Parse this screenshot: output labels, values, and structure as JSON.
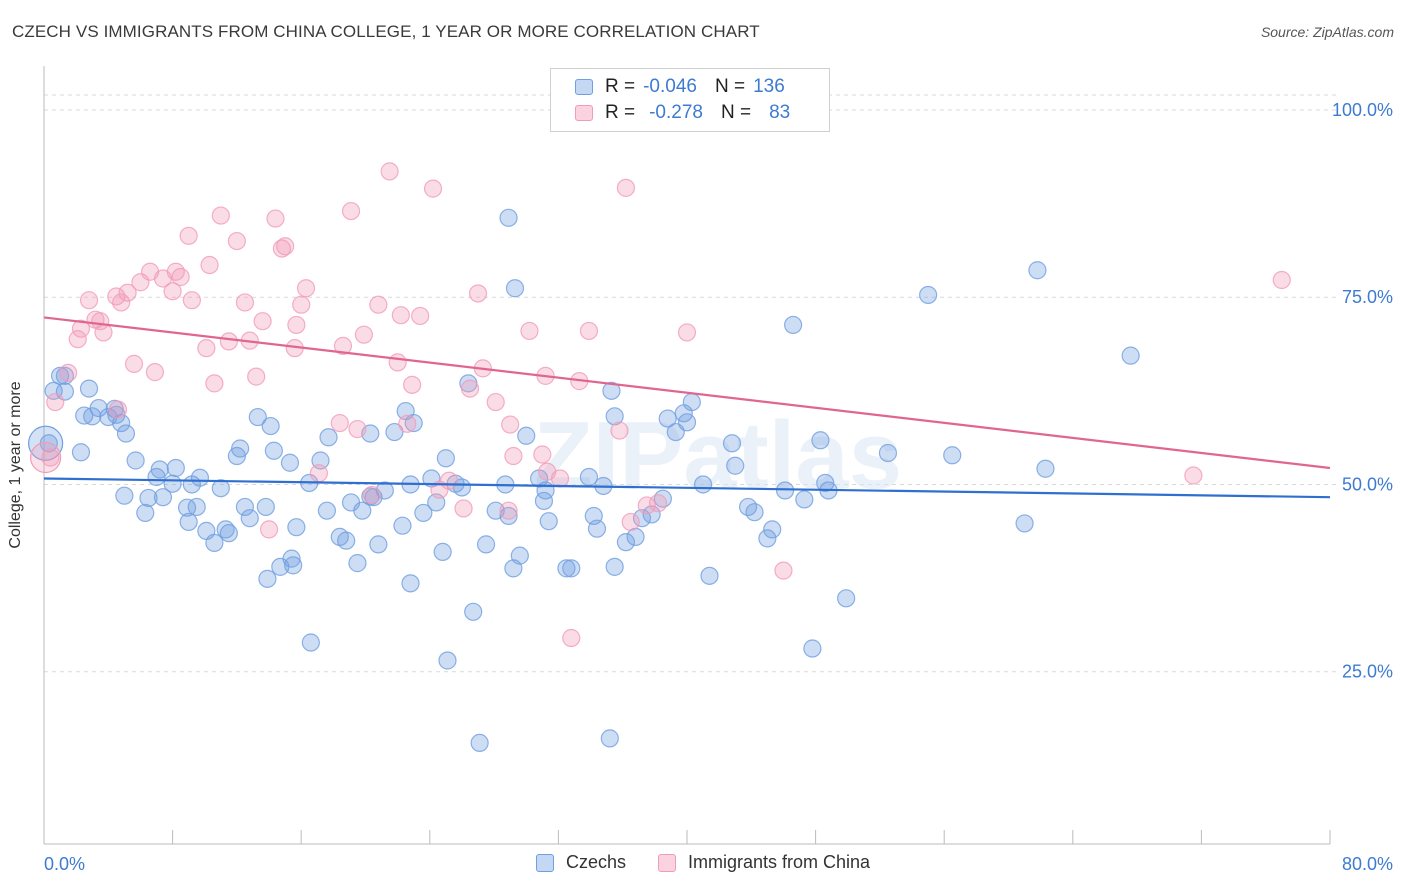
{
  "title": "CZECH VS IMMIGRANTS FROM CHINA COLLEGE, 1 YEAR OR MORE CORRELATION CHART",
  "source": "Source: ZipAtlas.com",
  "watermark": "ZIPatlas",
  "legend": {
    "rows": [
      {
        "r_label": "R =",
        "r_value": "-0.046",
        "n_label": "N =",
        "n_value": "136"
      },
      {
        "r_label": "R =",
        "r_value": "-0.278",
        "n_label": "N =",
        "n_value": "83"
      }
    ]
  },
  "bottom_legend": [
    "Czechs",
    "Immigrants from China"
  ],
  "chart_data": {
    "type": "scatter",
    "title": "CZECH VS IMMIGRANTS FROM CHINA COLLEGE, 1 YEAR OR MORE CORRELATION CHART",
    "xlabel": "",
    "ylabel": "College, 1 year or more",
    "xlim": [
      0,
      80
    ],
    "ylim": [
      2,
      104
    ],
    "x_tick_labels": [
      "0.0%",
      "80.0%"
    ],
    "y_ticks": [
      25,
      50,
      75,
      100
    ],
    "y_tick_labels": [
      "25.0%",
      "50.0%",
      "75.0%",
      "100.0%"
    ],
    "grid": "horizontal dashed",
    "legend_position": "top-center",
    "colors": {
      "czechs": "#6f9fe0",
      "china": "#f29bb8",
      "czechs_line": "#2f6fcf",
      "china_line": "#e0668f",
      "tick_label": "#3d7bd0"
    },
    "series": [
      {
        "name": "Czechs",
        "r": -0.046,
        "n": 136,
        "trend": {
          "x": [
            0,
            80
          ],
          "y": [
            50.8,
            48.3
          ]
        },
        "points": [
          [
            0.3,
            55.5
          ],
          [
            0.6,
            62.5
          ],
          [
            1.0,
            64.5
          ],
          [
            1.3,
            64.5
          ],
          [
            2.8,
            62.8
          ],
          [
            2.5,
            59.2
          ],
          [
            3.4,
            60.2
          ],
          [
            4.5,
            59.3
          ],
          [
            4.8,
            58.2
          ],
          [
            5.1,
            56.8
          ],
          [
            4.4,
            60.1
          ],
          [
            4.0,
            59.0
          ],
          [
            2.3,
            54.3
          ],
          [
            5.7,
            53.2
          ],
          [
            7.2,
            52.0
          ],
          [
            8.2,
            52.2
          ],
          [
            7.0,
            51.0
          ],
          [
            8.0,
            50.1
          ],
          [
            9.7,
            50.9
          ],
          [
            9.2,
            50.0
          ],
          [
            6.5,
            48.2
          ],
          [
            7.4,
            48.3
          ],
          [
            6.3,
            46.2
          ],
          [
            8.9,
            46.9
          ],
          [
            9.0,
            45.0
          ],
          [
            10.1,
            43.8
          ],
          [
            10.6,
            42.2
          ],
          [
            11.3,
            44.0
          ],
          [
            11.5,
            43.5
          ],
          [
            12.8,
            45.5
          ],
          [
            12.5,
            47.0
          ],
          [
            13.8,
            47.0
          ],
          [
            12.0,
            53.8
          ],
          [
            12.2,
            54.8
          ],
          [
            13.3,
            59.0
          ],
          [
            14.1,
            57.8
          ],
          [
            14.3,
            54.5
          ],
          [
            15.3,
            52.9
          ],
          [
            15.7,
            44.3
          ],
          [
            15.4,
            40.1
          ],
          [
            14.7,
            39.0
          ],
          [
            15.5,
            39.2
          ],
          [
            13.9,
            37.4
          ],
          [
            16.6,
            28.9
          ],
          [
            17.2,
            53.2
          ],
          [
            17.6,
            46.5
          ],
          [
            17.7,
            56.3
          ],
          [
            18.4,
            43.0
          ],
          [
            18.8,
            42.5
          ],
          [
            19.1,
            47.6
          ],
          [
            19.5,
            39.5
          ],
          [
            20.3,
            48.4
          ],
          [
            20.3,
            56.8
          ],
          [
            20.8,
            42.0
          ],
          [
            20.5,
            48.3
          ],
          [
            21.2,
            49.2
          ],
          [
            21.8,
            57.0
          ],
          [
            22.3,
            44.5
          ],
          [
            22.8,
            50.0
          ],
          [
            22.5,
            59.8
          ],
          [
            23.0,
            58.2
          ],
          [
            22.8,
            36.8
          ],
          [
            23.6,
            46.2
          ],
          [
            24.1,
            50.8
          ],
          [
            24.4,
            47.6
          ],
          [
            24.8,
            41.0
          ],
          [
            25.0,
            53.5
          ],
          [
            25.6,
            50.1
          ],
          [
            26.0,
            49.6
          ],
          [
            25.1,
            26.5
          ],
          [
            26.7,
            33.0
          ],
          [
            26.4,
            63.5
          ],
          [
            27.1,
            15.5
          ],
          [
            28.1,
            46.5
          ],
          [
            28.7,
            50.0
          ],
          [
            28.9,
            45.8
          ],
          [
            29.2,
            38.8
          ],
          [
            29.3,
            76.2
          ],
          [
            29.6,
            40.5
          ],
          [
            30.0,
            56.5
          ],
          [
            31.1,
            47.8
          ],
          [
            31.2,
            49.2
          ],
          [
            31.4,
            45.1
          ],
          [
            32.5,
            38.8
          ],
          [
            32.8,
            38.8
          ],
          [
            33.9,
            51.0
          ],
          [
            34.2,
            45.8
          ],
          [
            34.4,
            44.1
          ],
          [
            34.8,
            49.8
          ],
          [
            35.2,
            16.1
          ],
          [
            35.3,
            62.5
          ],
          [
            35.5,
            39.0
          ],
          [
            35.5,
            59.1
          ],
          [
            36.2,
            42.3
          ],
          [
            37.2,
            45.5
          ],
          [
            37.8,
            46.0
          ],
          [
            38.8,
            58.8
          ],
          [
            39.3,
            57.0
          ],
          [
            39.8,
            59.5
          ],
          [
            40.0,
            58.3
          ],
          [
            40.3,
            61.0
          ],
          [
            41.0,
            50.0
          ],
          [
            41.4,
            37.8
          ],
          [
            42.8,
            55.5
          ],
          [
            43.8,
            47.0
          ],
          [
            44.2,
            46.3
          ],
          [
            45.0,
            42.8
          ],
          [
            45.3,
            44.0
          ],
          [
            46.1,
            49.2
          ],
          [
            46.6,
            71.3
          ],
          [
            47.3,
            48.0
          ],
          [
            47.8,
            28.1
          ],
          [
            48.3,
            55.9
          ],
          [
            48.6,
            50.2
          ],
          [
            48.8,
            49.2
          ],
          [
            49.9,
            34.8
          ],
          [
            52.5,
            54.2
          ],
          [
            55.0,
            75.3
          ],
          [
            56.5,
            53.9
          ],
          [
            61.0,
            44.8
          ],
          [
            61.8,
            78.6
          ],
          [
            62.3,
            52.1
          ],
          [
            67.6,
            67.2
          ],
          [
            1.3,
            62.4
          ],
          [
            3.0,
            59.1
          ],
          [
            5.0,
            48.5
          ],
          [
            9.5,
            47.0
          ],
          [
            11.0,
            49.5
          ],
          [
            16.5,
            50.2
          ],
          [
            19.8,
            46.5
          ],
          [
            27.5,
            42.0
          ],
          [
            30.8,
            50.8
          ],
          [
            36.8,
            43.0
          ],
          [
            38.5,
            48.1
          ],
          [
            43.0,
            52.5
          ],
          [
            28.9,
            85.6
          ]
        ]
      },
      {
        "name": "Immigrants from China",
        "r": -0.278,
        "n": 83,
        "trend": {
          "x": [
            0,
            80
          ],
          "y": [
            72.3,
            52.2
          ]
        },
        "points": [
          [
            0.4,
            53.6
          ],
          [
            0.7,
            61.0
          ],
          [
            1.5,
            64.9
          ],
          [
            2.1,
            69.4
          ],
          [
            2.3,
            70.8
          ],
          [
            2.8,
            74.6
          ],
          [
            3.2,
            72.0
          ],
          [
            3.5,
            71.8
          ],
          [
            3.7,
            70.3
          ],
          [
            4.5,
            75.1
          ],
          [
            4.8,
            74.3
          ],
          [
            4.6,
            60.0
          ],
          [
            5.2,
            75.6
          ],
          [
            5.6,
            66.1
          ],
          [
            6.0,
            77.0
          ],
          [
            6.6,
            78.4
          ],
          [
            6.9,
            65.0
          ],
          [
            7.4,
            77.5
          ],
          [
            8.0,
            75.8
          ],
          [
            8.2,
            78.4
          ],
          [
            8.5,
            77.7
          ],
          [
            9.0,
            83.2
          ],
          [
            9.2,
            74.6
          ],
          [
            10.1,
            68.2
          ],
          [
            10.3,
            79.3
          ],
          [
            10.6,
            63.5
          ],
          [
            11.0,
            85.9
          ],
          [
            11.5,
            69.1
          ],
          [
            12.0,
            82.5
          ],
          [
            12.5,
            74.3
          ],
          [
            12.8,
            69.2
          ],
          [
            13.2,
            64.4
          ],
          [
            13.6,
            71.8
          ],
          [
            14.0,
            44.0
          ],
          [
            14.4,
            85.5
          ],
          [
            14.8,
            81.5
          ],
          [
            15.0,
            81.8
          ],
          [
            15.7,
            71.3
          ],
          [
            15.6,
            68.2
          ],
          [
            16.0,
            74.0
          ],
          [
            16.3,
            76.2
          ],
          [
            17.1,
            51.5
          ],
          [
            18.4,
            58.2
          ],
          [
            18.6,
            68.5
          ],
          [
            19.1,
            86.5
          ],
          [
            19.5,
            57.4
          ],
          [
            19.9,
            70.0
          ],
          [
            20.4,
            48.6
          ],
          [
            20.8,
            74.0
          ],
          [
            21.5,
            91.8
          ],
          [
            22.0,
            66.3
          ],
          [
            22.2,
            72.6
          ],
          [
            22.6,
            58.1
          ],
          [
            22.9,
            63.3
          ],
          [
            23.4,
            72.5
          ],
          [
            24.2,
            89.5
          ],
          [
            24.6,
            49.3
          ],
          [
            25.2,
            50.5
          ],
          [
            26.1,
            46.8
          ],
          [
            26.5,
            62.8
          ],
          [
            27.0,
            75.5
          ],
          [
            27.3,
            65.5
          ],
          [
            28.1,
            61.0
          ],
          [
            28.9,
            46.5
          ],
          [
            29.0,
            58.0
          ],
          [
            29.2,
            53.8
          ],
          [
            30.2,
            70.5
          ],
          [
            31.2,
            64.5
          ],
          [
            31.3,
            51.7
          ],
          [
            32.1,
            50.8
          ],
          [
            32.8,
            29.5
          ],
          [
            33.3,
            63.8
          ],
          [
            33.9,
            70.5
          ],
          [
            35.8,
            57.2
          ],
          [
            36.2,
            89.6
          ],
          [
            36.5,
            45.0
          ],
          [
            37.5,
            47.2
          ],
          [
            38.2,
            47.5
          ],
          [
            40.0,
            70.3
          ],
          [
            46.0,
            38.5
          ],
          [
            71.5,
            51.2
          ],
          [
            77.0,
            77.3
          ],
          [
            31.0,
            54.0
          ]
        ]
      }
    ]
  }
}
